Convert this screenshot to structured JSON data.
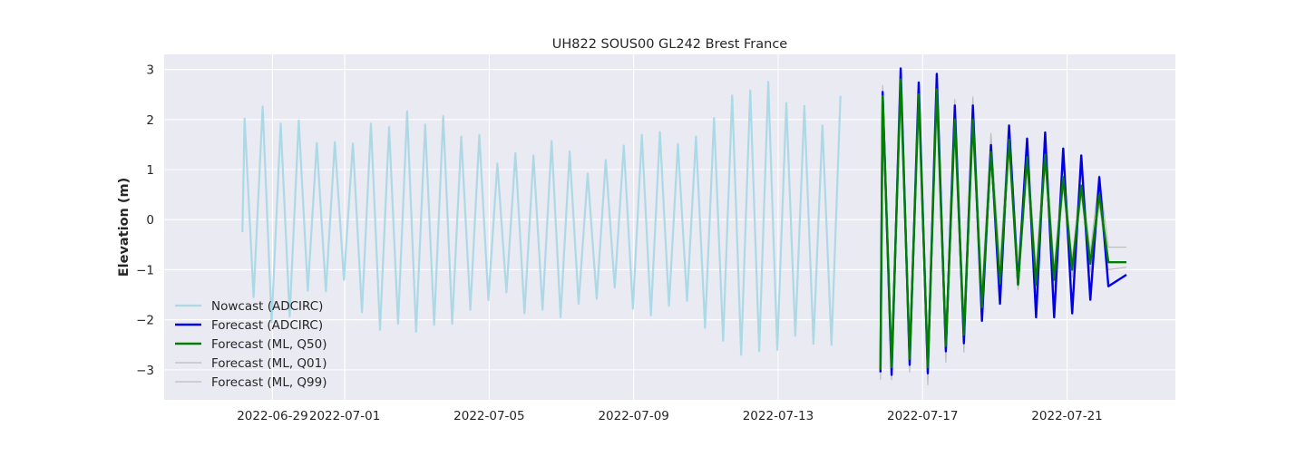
{
  "chart_data": {
    "type": "line",
    "title": "UH822 SOUS00 GL242 Brest France",
    "xlabel": "",
    "ylabel": "Elevation (m)",
    "xlim": [
      "2022-06-26T00:00",
      "2022-07-24T00:00"
    ],
    "ylim": [
      -3.6,
      3.3
    ],
    "grid": true,
    "legend_position": "lower-left",
    "x_ticks": [
      "2022-06-29",
      "2022-07-01",
      "2022-07-05",
      "2022-07-09",
      "2022-07-13",
      "2022-07-17",
      "2022-07-21"
    ],
    "y_ticks": [
      3,
      2,
      1,
      0,
      -1,
      -2,
      -3
    ],
    "colors": {
      "plot_background": "#eaeaf2",
      "grid": "#ffffff"
    },
    "series": [
      {
        "name": "Nowcast (ADCIRC)",
        "color": "#add8e6",
        "line_width": 2.2,
        "semidiurnal_highs": [
          [
            2.02,
            2.26
          ],
          [
            1.92,
            1.98
          ],
          [
            1.53,
            1.55
          ],
          [
            1.52,
            1.92
          ],
          [
            1.85,
            2.16
          ],
          [
            1.9,
            2.07
          ],
          [
            1.66,
            1.69
          ],
          [
            1.12,
            1.33
          ],
          [
            1.28,
            1.57
          ],
          [
            1.36,
            0.92
          ],
          [
            1.19,
            1.48
          ],
          [
            1.69,
            1.75
          ],
          [
            1.51,
            1.66
          ],
          [
            2.03,
            2.48
          ],
          [
            2.58,
            2.75
          ],
          [
            2.33,
            2.27
          ],
          [
            1.88,
            2.47
          ]
        ],
        "semidiurnal_lows": [
          [
            -1.55,
            -2.05
          ],
          [
            -1.93,
            -1.42
          ],
          [
            -1.43,
            -1.2
          ],
          [
            -1.85,
            -2.2
          ],
          [
            -2.08,
            -2.24
          ],
          [
            -2.1,
            -2.08
          ],
          [
            -1.8,
            -1.61
          ],
          [
            -1.45,
            -1.87
          ],
          [
            -1.8,
            -1.95
          ],
          [
            -1.68,
            -1.58
          ],
          [
            -1.36,
            -1.78
          ],
          [
            -1.91,
            -1.72
          ],
          [
            -1.62,
            -2.16
          ],
          [
            -2.42,
            -2.7
          ],
          [
            -2.63,
            -2.6
          ],
          [
            -2.32,
            -2.48
          ],
          [
            -2.5
          ]
        ]
      },
      {
        "name": "Forecast (ADCIRC)",
        "color": "#0000ee",
        "line_width": 2.4,
        "semidiurnal_highs": [
          [
            2.55,
            3.02
          ],
          [
            2.74,
            2.91
          ],
          [
            2.28,
            2.28
          ],
          [
            1.49,
            1.88
          ],
          [
            1.62,
            1.74
          ],
          [
            1.42,
            1.28
          ],
          [
            0.85
          ]
        ],
        "semidiurnal_lows": [
          [
            -3.1,
            -2.9
          ],
          [
            -3.07,
            -2.63
          ],
          [
            -2.47,
            -2.02
          ],
          [
            -1.68,
            -1.29
          ],
          [
            -1.95,
            -1.95
          ],
          [
            -1.87,
            -1.6
          ],
          [
            -1.33,
            -1.1
          ]
        ]
      },
      {
        "name": "Forecast (ML, Q50)",
        "color": "#008000",
        "line_width": 2.4,
        "semidiurnal_highs": [
          [
            2.47,
            2.8
          ],
          [
            2.5,
            2.6
          ],
          [
            2.0,
            2.0
          ],
          [
            1.35,
            1.6
          ],
          [
            1.25,
            1.3
          ],
          [
            0.85,
            0.68
          ],
          [
            0.5
          ]
        ],
        "semidiurnal_lows": [
          [
            -2.95,
            -2.78
          ],
          [
            -2.95,
            -2.52
          ],
          [
            -2.3,
            -1.75
          ],
          [
            -1.28,
            -1.3
          ],
          [
            -1.3,
            -1.2
          ],
          [
            -1.0,
            -0.88
          ],
          [
            -0.85,
            -0.85
          ]
        ]
      },
      {
        "name": "Forecast (ML, Q01)",
        "color": "#bebebe",
        "line_width": 1.2,
        "semidiurnal_highs": [
          [
            2.35,
            2.6
          ],
          [
            2.3,
            2.4
          ],
          [
            1.8,
            1.85
          ],
          [
            1.2,
            1.45
          ],
          [
            1.05,
            1.1
          ],
          [
            0.65,
            0.5
          ],
          [
            0.3
          ]
        ],
        "semidiurnal_lows": [
          [
            -3.2,
            -3.05
          ],
          [
            -3.3,
            -2.85
          ],
          [
            -2.65,
            -2.0
          ],
          [
            -1.5,
            -1.4
          ],
          [
            -1.45,
            -1.35
          ],
          [
            -1.15,
            -1.05
          ],
          [
            -1.0,
            -0.95
          ]
        ]
      },
      {
        "name": "Forecast (ML, Q99)",
        "color": "#bebebe",
        "line_width": 1.2,
        "semidiurnal_highs": [
          [
            2.68,
            2.98
          ],
          [
            2.7,
            2.75
          ],
          [
            2.4,
            2.45
          ],
          [
            1.72,
            1.9
          ],
          [
            1.55,
            1.65
          ],
          [
            1.1,
            0.95
          ],
          [
            0.88
          ]
        ],
        "semidiurnal_lows": [
          [
            -2.8,
            -2.6
          ],
          [
            -2.75,
            -2.3
          ],
          [
            -2.05,
            -1.4
          ],
          [
            -0.85,
            -0.95
          ],
          [
            -1.0,
            -0.95
          ],
          [
            -0.8,
            -0.65
          ],
          [
            -0.55,
            -0.55
          ]
        ]
      }
    ]
  }
}
